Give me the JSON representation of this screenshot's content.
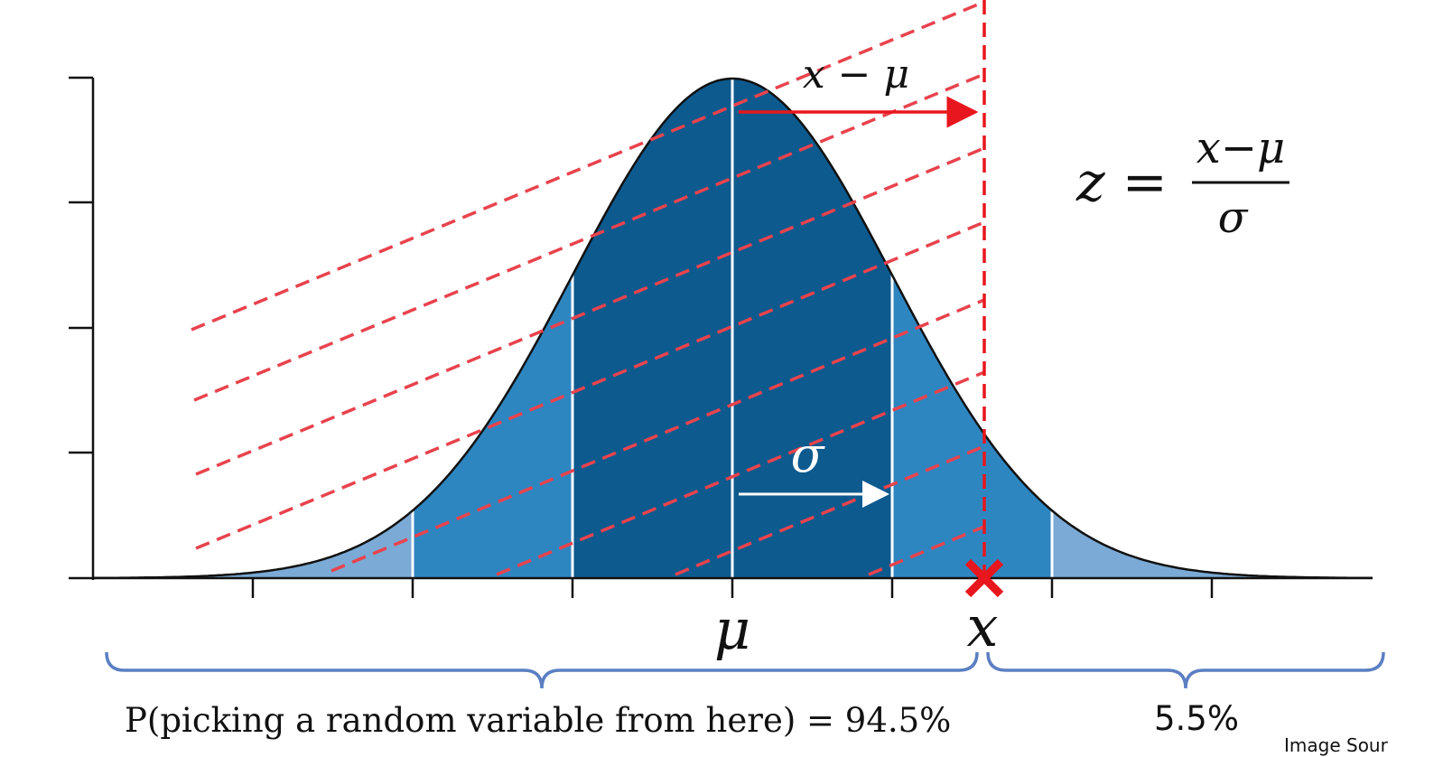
{
  "labels": {
    "diff": "x − μ",
    "sigma": "σ",
    "mu": "μ",
    "x": "x",
    "z_lhs": "z =",
    "z_num": "x−μ",
    "z_den": "σ",
    "prob_left": "P(picking a random variable from here) = 94.5%",
    "prob_right": "5.5%",
    "source": "Image Sour"
  },
  "colors": {
    "dark_region": "#0d5a8e",
    "mid_region": "#2e86c1",
    "light_region": "#7aaad5",
    "marker": "#e8161d",
    "dashes": "#e8434d",
    "brace": "#5b7fc2"
  },
  "distribution": {
    "mean_marker": "μ",
    "x_position_in_sd": 1.6,
    "left_area_percent": 94.5,
    "right_area_percent": 5.5
  }
}
